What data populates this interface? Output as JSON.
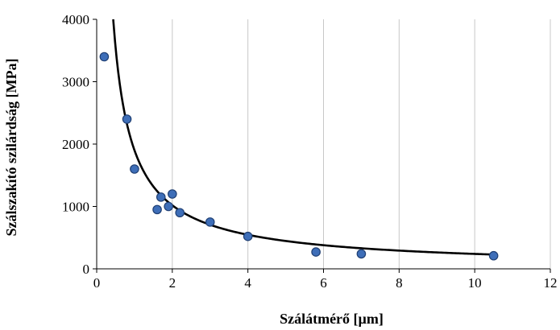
{
  "chart_data": {
    "type": "scatter",
    "title": "",
    "xlabel": "Szálátmérő [µm]",
    "ylabel": "Szálszakító szilárdság [MPa]",
    "xlim": [
      0,
      12
    ],
    "ylim": [
      0,
      4000
    ],
    "x_ticks": [
      0,
      2,
      4,
      6,
      8,
      10,
      12
    ],
    "y_ticks": [
      0,
      1000,
      2000,
      3000,
      4000
    ],
    "x_tick_labels": [
      "0",
      "2",
      "4",
      "6",
      "8",
      "10",
      "12"
    ],
    "y_tick_labels": [
      "0",
      "1000",
      "2000",
      "3000",
      "4000"
    ],
    "grid": "vertical lines at x ticks",
    "legend": "none",
    "series": [
      {
        "x": [
          0.2,
          0.8,
          1.0,
          1.6,
          1.7,
          1.9,
          2.0,
          2.2,
          3.0,
          4.0,
          5.8,
          7.0,
          10.5
        ],
        "y": [
          3400,
          2400,
          1600,
          950,
          1150,
          1000,
          1200,
          900,
          750,
          520,
          270,
          240,
          210
        ],
        "marker": "circle",
        "color": "#3e6eb8"
      }
    ],
    "trendline": {
      "kind": "power",
      "coefficient": 1900,
      "exponent": -0.9,
      "x_from": 0.4,
      "x_to": 10.5,
      "color": "#000000"
    }
  }
}
